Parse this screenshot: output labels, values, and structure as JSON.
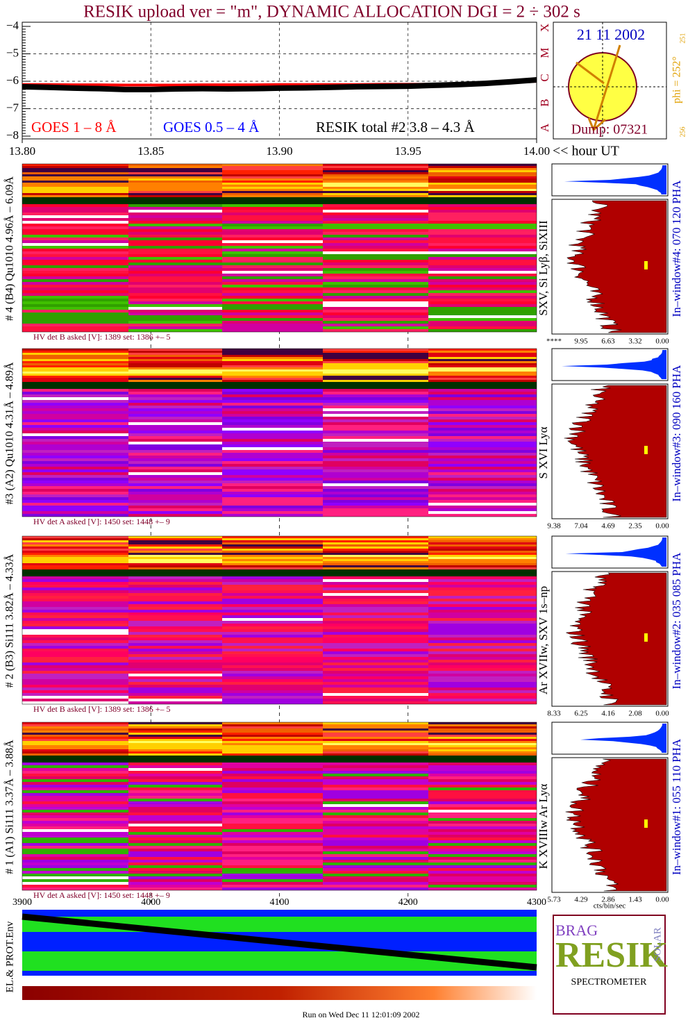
{
  "chart_data": {
    "type": "line",
    "title": "RESIK upload ver = \"m\", DYNAMIC ALLOCATION  DGI =   2 ÷ 302 s",
    "x_label": "<< hour UT",
    "xlim": [
      13.8,
      14.0
    ],
    "xticks": [
      {
        "value": 13.8,
        "label": "13.80"
      },
      13.85,
      {
        "value": 13.9,
        "label": "13.90"
      },
      13.95,
      {
        "value": 14.0,
        "label": "14.00"
      }
    ],
    "ylim": [
      -8,
      -4
    ],
    "yticks": [
      {
        "value": -8,
        "label": "−8"
      },
      {
        "value": -7,
        "label": "−7"
      },
      {
        "value": -6,
        "label": "−6"
      },
      {
        "value": -5,
        "label": "−5"
      },
      {
        "value": -4,
        "label": "−4"
      }
    ],
    "grid": true,
    "x": [
      13.8,
      13.81,
      13.82,
      13.83,
      13.84,
      13.85,
      13.86,
      13.87,
      13.88,
      13.89,
      13.9,
      13.91,
      13.92,
      13.93,
      13.94,
      13.95,
      13.96,
      13.97,
      13.98,
      13.99,
      14.0
    ],
    "series": [
      {
        "name": "GOES 1 – 8 Å",
        "color": "#ff0000",
        "values": [
          -6.12,
          -6.12,
          -6.13,
          -6.13,
          -6.14,
          -6.14,
          -6.14,
          -6.13,
          -6.13,
          -6.13,
          -6.12,
          -6.12,
          -6.12,
          -6.12,
          -6.11,
          -6.11,
          -6.11,
          -6.1,
          -6.08,
          -6.05,
          -6.0
        ]
      },
      {
        "name": "GOES 0.5 – 4 Å",
        "color": "#0000ff",
        "values": [
          null,
          null,
          null,
          null,
          null,
          null,
          null,
          null,
          null,
          null,
          null,
          null,
          null,
          null,
          null,
          null,
          null,
          null,
          null,
          null,
          null
        ]
      },
      {
        "name": "RESIK total #2  3.8 – 4.3 Å",
        "color": "#000000",
        "values": [
          -6.2,
          -6.22,
          -6.25,
          -6.27,
          -6.3,
          -6.3,
          -6.28,
          -6.27,
          -6.28,
          -6.27,
          -6.25,
          -6.24,
          -6.22,
          -6.2,
          -6.19,
          -6.18,
          -6.15,
          -6.12,
          -6.08,
          -6.02,
          -5.95
        ]
      }
    ]
  },
  "sun_panel": {
    "date": "21 11 2002",
    "dump": "Dump: 07321",
    "classes": [
      "X",
      "M",
      "C",
      "B",
      "A"
    ],
    "phi": "phi = 252°",
    "phi_sub": "251",
    "corner": "256"
  },
  "panels": [
    {
      "detector": "# 4 (B4) Qu1010 4.96Å – 6.09Å",
      "lines": "SXV, Si Lyβ, SiXIII",
      "hv": "HV det B asked [V]:  1389 set:  1386 +–    5",
      "window": "In–window#4:  070 120 PHA",
      "scale": [
        "****",
        "9.95",
        "6.63",
        "3.32",
        "0.00"
      ]
    },
    {
      "detector": "#3 (A2) Qu1010  4.31Å – 4.89Å",
      "lines": "S XVI Lyα",
      "hv": "HV det A asked [V]:  1450 set:  1448 +–    9",
      "window": "In–window#3:  090 160 PHA",
      "scale": [
        "9.38",
        "7.04",
        "4.69",
        "2.35",
        "0.00"
      ]
    },
    {
      "detector": "# 2 (B3) Si111  3.82Å – 4.33Å",
      "lines": "Ar XVIIw,  SXV 1s–np",
      "hv": "HV det B asked [V]:  1389 set:  1386 +–    5",
      "window": "In–window#2:  035 085 PHA",
      "scale": [
        "8.33",
        "6.25",
        "4.16",
        "2.08",
        "0.00"
      ]
    },
    {
      "detector": "# 1 (A1) Si111  3.37Å – 3.88Å",
      "lines": "K XVIIIw   Ar Lyα",
      "hv": "HV det A asked [V]:  1450 set:  1448 +–    9",
      "window": "In–window#1:  055 110 PHA",
      "scale": [
        "5.73",
        "4.29",
        "2.86",
        "1.43",
        "0.00"
      ]
    }
  ],
  "bottom": {
    "axis": [
      "3900",
      "4000",
      "4100",
      "4200",
      "4300"
    ],
    "env_label": "EL.& PROT.Env",
    "units": "cts/bin/sec"
  },
  "logo": {
    "brag": "BRAG",
    "resik": "RESIK",
    "solar": "SOLAR",
    "spectrometer": "SPECTROMETER"
  },
  "footer": "Run on Wed Dec 11 12:01:09 2002"
}
